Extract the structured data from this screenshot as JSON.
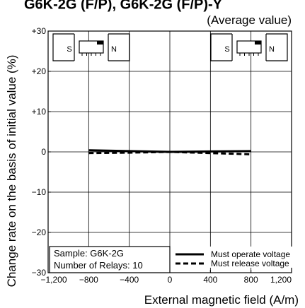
{
  "chart_data": {
    "type": "line",
    "title": "G6K-2G (F/P), G6K-2G (F/P)-Y",
    "subtitle": "(Average value)",
    "xlabel": "External magnetic field (A/m)",
    "ylabel": "Change rate on the basis of initial value (%)",
    "xlim": [
      -1200,
      1200
    ],
    "ylim": [
      -30,
      30
    ],
    "x_ticks": [
      -1200,
      -800,
      -400,
      0,
      400,
      800,
      1200
    ],
    "x_tick_labels": [
      "−1,200",
      "−800",
      "−400",
      "0",
      "400",
      "800",
      "1,200"
    ],
    "y_ticks": [
      30,
      20,
      10,
      0,
      -10,
      -20,
      -30
    ],
    "y_tick_labels": [
      "+30",
      "+20",
      "+10",
      "0",
      "−10",
      "−20",
      "−30"
    ],
    "grid": true,
    "series": [
      {
        "name": "Must operate voltage",
        "style": "solid",
        "x": [
          -800,
          -400,
          0,
          400,
          800
        ],
        "y": [
          0.4,
          0.2,
          0.0,
          0.1,
          0.2
        ]
      },
      {
        "name": "Must release voltage",
        "style": "dashed",
        "x": [
          -800,
          -400,
          0,
          400,
          800
        ],
        "y": [
          -0.3,
          -0.2,
          0.0,
          -0.3,
          -0.6
        ]
      }
    ],
    "legend_position": "bottom-right",
    "notes": [
      "Sample: G6K-2G",
      "Number of Relays: 10"
    ],
    "insets": [
      {
        "position": "top-left",
        "left_pole": "S",
        "right_pole": "N"
      },
      {
        "position": "top-right",
        "left_pole": "S",
        "right_pole": "N"
      }
    ]
  }
}
